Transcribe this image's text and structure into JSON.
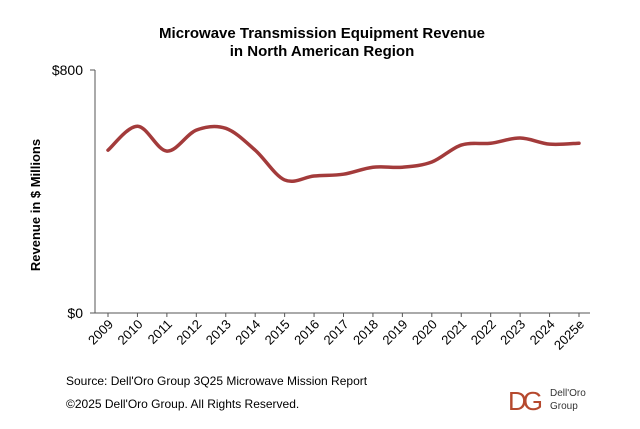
{
  "chart_data": {
    "type": "line",
    "title": [
      "Microwave Transmission Equipment Revenue",
      "in North American Region"
    ],
    "y_label": "Revenue in $ Millions",
    "categories": [
      "2009",
      "2010",
      "2011",
      "2012",
      "2013",
      "2014",
      "2015",
      "2016",
      "2017",
      "2018",
      "2019",
      "2020",
      "2021",
      "2022",
      "2023",
      "2024",
      "2025e"
    ],
    "values": [
      536,
      615,
      533,
      602,
      608,
      536,
      438,
      451,
      457,
      480,
      480,
      497,
      553,
      559,
      576,
      556,
      559
    ],
    "color": "#a33b3b",
    "ylim": [
      0,
      800
    ],
    "yticks": [
      {
        "value": 0,
        "label": "$0"
      },
      {
        "value": 800,
        "label": "$800"
      }
    ],
    "source": "Source: Dell'Oro Group 3Q25 Microwave Mission Report",
    "copyright": "©2025 Dell'Oro Group. All Rights Reserved.",
    "logo": {
      "mark": "DG",
      "line1": "Dell'Oro",
      "line2": "Group"
    }
  }
}
